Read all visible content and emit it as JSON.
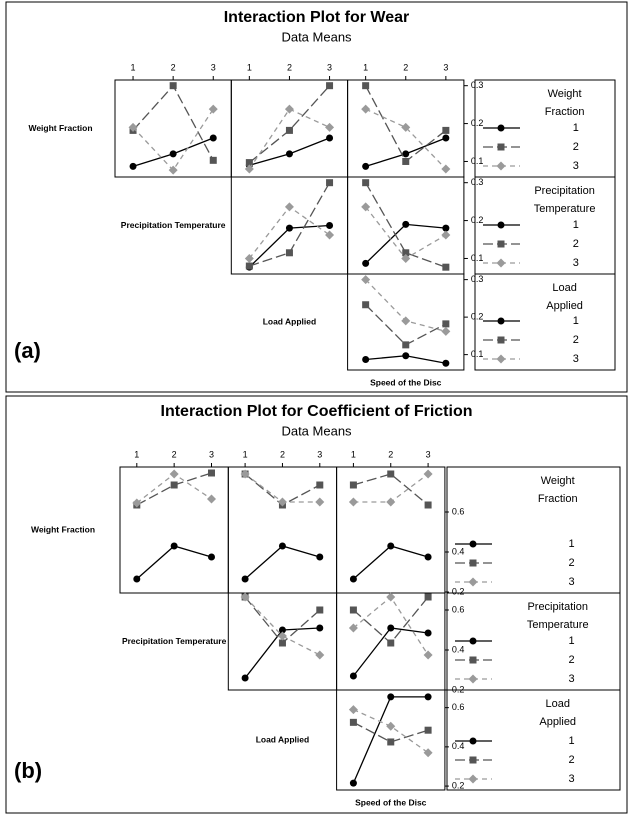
{
  "chart_data": [
    {
      "type": "interaction_matrix",
      "label": "(a)",
      "title": "Interaction Plot for Wear",
      "subtitle": "Data Means",
      "factors": [
        "Weight Fraction",
        "Precipitation Temperature",
        "Load Applied",
        "Speed of the Disc"
      ],
      "x": [
        1,
        2,
        3
      ],
      "xlim": [
        0.55,
        3.45
      ],
      "xticks": [
        1,
        2,
        3
      ],
      "rows": [
        {
          "legend_title": [
            "Weight",
            "Fraction"
          ],
          "ylim": [
            0.059,
            0.315
          ],
          "yticks": [
            0.1,
            0.2,
            0.3
          ],
          "legend": [
            {
              "name": "1",
              "color": "#000000",
              "marker": "circle",
              "line": "solid"
            },
            {
              "name": "2",
              "color": "#555555",
              "marker": "square",
              "line": "long-dash"
            },
            {
              "name": "3",
              "color": "#9a9a9a",
              "marker": "diamond",
              "line": "dash"
            }
          ],
          "panels": [
            {
              "series": [
                {
                  "values": [
                    0.087,
                    0.12,
                    0.162
                  ]
                },
                {
                  "values": [
                    0.182,
                    0.3,
                    0.103
                  ]
                },
                {
                  "values": [
                    0.19,
                    0.077,
                    0.238
                  ]
                }
              ]
            },
            {
              "series": [
                {
                  "values": [
                    0.09,
                    0.12,
                    0.162
                  ]
                },
                {
                  "values": [
                    0.097,
                    0.182,
                    0.3
                  ]
                },
                {
                  "values": [
                    0.08,
                    0.238,
                    0.19
                  ]
                }
              ]
            },
            {
              "series": [
                {
                  "values": [
                    0.087,
                    0.12,
                    0.162
                  ]
                },
                {
                  "values": [
                    0.3,
                    0.1,
                    0.182
                  ]
                },
                {
                  "values": [
                    0.238,
                    0.19,
                    0.08
                  ]
                }
              ]
            }
          ]
        },
        {
          "legend_title": [
            "Precipitation",
            "Temperature"
          ],
          "ylim": [
            0.059,
            0.315
          ],
          "yticks": [
            0.1,
            0.2,
            0.3
          ],
          "legend": [
            {
              "name": "1",
              "color": "#000000",
              "marker": "circle",
              "line": "solid"
            },
            {
              "name": "2",
              "color": "#555555",
              "marker": "square",
              "line": "long-dash"
            },
            {
              "name": "3",
              "color": "#9a9a9a",
              "marker": "diamond",
              "line": "dash"
            }
          ],
          "panels": [
            {
              "series": [
                {
                  "values": [
                    0.077,
                    0.18,
                    0.187
                  ]
                },
                {
                  "values": [
                    0.08,
                    0.115,
                    0.3
                  ]
                },
                {
                  "values": [
                    0.1,
                    0.236,
                    0.162
                  ]
                }
              ]
            },
            {
              "series": [
                {
                  "values": [
                    0.087,
                    0.19,
                    0.18
                  ]
                },
                {
                  "values": [
                    0.3,
                    0.115,
                    0.077
                  ]
                },
                {
                  "values": [
                    0.236,
                    0.1,
                    0.162
                  ]
                }
              ]
            }
          ]
        },
        {
          "legend_title": [
            "Load",
            "Applied"
          ],
          "ylim": [
            0.059,
            0.315
          ],
          "yticks": [
            0.1,
            0.2,
            0.3
          ],
          "legend": [
            {
              "name": "1",
              "color": "#000000",
              "marker": "circle",
              "line": "solid"
            },
            {
              "name": "2",
              "color": "#555555",
              "marker": "square",
              "line": "long-dash"
            },
            {
              "name": "3",
              "color": "#9a9a9a",
              "marker": "diamond",
              "line": "dash"
            }
          ],
          "panels": [
            {
              "series": [
                {
                  "values": [
                    0.087,
                    0.097,
                    0.077
                  ]
                },
                {
                  "values": [
                    0.233,
                    0.126,
                    0.182
                  ]
                },
                {
                  "values": [
                    0.3,
                    0.19,
                    0.162
                  ]
                }
              ]
            }
          ]
        }
      ]
    },
    {
      "type": "interaction_matrix",
      "label": "(b)",
      "title": "Interaction Plot for Coefficient of Friction",
      "subtitle": "Data Means",
      "factors": [
        "Weight Fraction",
        "Precipitation Temperature",
        "Load Applied",
        "Speed of the Disc"
      ],
      "x": [
        1,
        2,
        3
      ],
      "xlim": [
        0.55,
        3.45
      ],
      "xticks": [
        1,
        2,
        3
      ],
      "rows": [
        {
          "legend_title": [
            "Weight",
            "Fraction"
          ],
          "ylim": [
            0.195,
            0.825
          ],
          "yticks": [
            0.2,
            0.4,
            0.6
          ],
          "legend": [
            {
              "name": "1",
              "color": "#000000",
              "marker": "circle",
              "line": "solid"
            },
            {
              "name": "2",
              "color": "#555555",
              "marker": "square",
              "line": "long-dash"
            },
            {
              "name": "3",
              "color": "#9a9a9a",
              "marker": "diamond",
              "line": "dash"
            }
          ],
          "panels": [
            {
              "series": [
                {
                  "values": [
                    0.265,
                    0.43,
                    0.375
                  ]
                },
                {
                  "values": [
                    0.635,
                    0.735,
                    0.795
                  ]
                },
                {
                  "values": [
                    0.645,
                    0.79,
                    0.665
                  ]
                }
              ]
            },
            {
              "series": [
                {
                  "values": [
                    0.265,
                    0.43,
                    0.375
                  ]
                },
                {
                  "values": [
                    0.79,
                    0.635,
                    0.735
                  ]
                },
                {
                  "values": [
                    0.79,
                    0.65,
                    0.65
                  ]
                }
              ]
            },
            {
              "series": [
                {
                  "values": [
                    0.265,
                    0.43,
                    0.375
                  ]
                },
                {
                  "values": [
                    0.735,
                    0.79,
                    0.635
                  ]
                },
                {
                  "values": [
                    0.65,
                    0.65,
                    0.79
                  ]
                }
              ]
            }
          ]
        },
        {
          "legend_title": [
            "Precipitation",
            "Temperature"
          ],
          "ylim": [
            0.2,
            0.685
          ],
          "yticks": [
            0.2,
            0.4,
            0.6
          ],
          "legend": [
            {
              "name": "1",
              "color": "#000000",
              "marker": "circle",
              "line": "solid"
            },
            {
              "name": "2",
              "color": "#555555",
              "marker": "square",
              "line": "long-dash"
            },
            {
              "name": "3",
              "color": "#9a9a9a",
              "marker": "diamond",
              "line": "dash"
            }
          ],
          "panels": [
            {
              "series": [
                {
                  "values": [
                    0.26,
                    0.5,
                    0.51
                  ]
                },
                {
                  "values": [
                    0.665,
                    0.435,
                    0.6
                  ]
                },
                {
                  "values": [
                    0.665,
                    0.47,
                    0.375
                  ]
                }
              ]
            },
            {
              "series": [
                {
                  "values": [
                    0.27,
                    0.51,
                    0.485
                  ]
                },
                {
                  "values": [
                    0.6,
                    0.435,
                    0.665
                  ]
                },
                {
                  "values": [
                    0.51,
                    0.665,
                    0.375
                  ]
                }
              ]
            }
          ]
        },
        {
          "legend_title": [
            "Load",
            "Applied"
          ],
          "ylim": [
            0.18,
            0.69
          ],
          "yticks": [
            0.2,
            0.4,
            0.6
          ],
          "legend": [
            {
              "name": "1",
              "color": "#000000",
              "marker": "circle",
              "line": "solid"
            },
            {
              "name": "2",
              "color": "#555555",
              "marker": "square",
              "line": "long-dash"
            },
            {
              "name": "3",
              "color": "#9a9a9a",
              "marker": "diamond",
              "line": "dash"
            }
          ],
          "panels": [
            {
              "series": [
                {
                  "values": [
                    0.215,
                    0.655,
                    0.655
                  ]
                },
                {
                  "values": [
                    0.525,
                    0.425,
                    0.485
                  ]
                },
                {
                  "values": [
                    0.59,
                    0.505,
                    0.37
                  ]
                }
              ]
            }
          ]
        }
      ]
    }
  ]
}
